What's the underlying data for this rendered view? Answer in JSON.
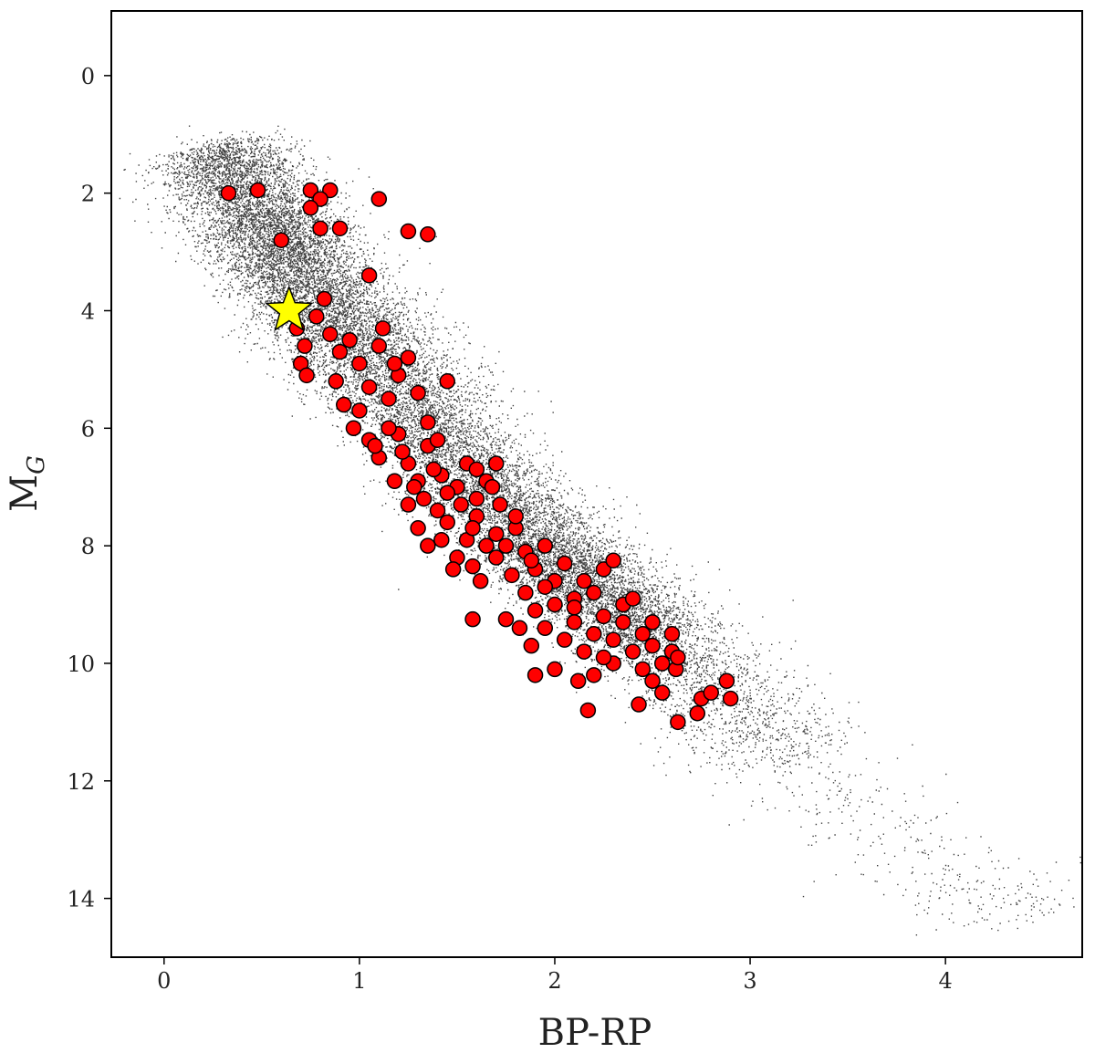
{
  "chart_data": {
    "type": "scatter",
    "xlabel": "BP-RP",
    "ylabel": "M",
    "ylabel_subscript": "G",
    "xlim": [
      -0.27,
      4.7
    ],
    "ylim": [
      15.0,
      -1.1
    ],
    "y_inverted": true,
    "x_ticks": [
      {
        "value": 0,
        "label": "0"
      },
      {
        "value": 1,
        "label": "1"
      },
      {
        "value": 2,
        "label": "2"
      },
      {
        "value": 3,
        "label": "3"
      },
      {
        "value": 4,
        "label": "4"
      }
    ],
    "y_ticks": [
      {
        "value": 0,
        "label": "0"
      },
      {
        "value": 2,
        "label": "2"
      },
      {
        "value": 4,
        "label": "4"
      },
      {
        "value": 6,
        "label": "6"
      },
      {
        "value": 8,
        "label": "8"
      },
      {
        "value": 10,
        "label": "10"
      },
      {
        "value": 12,
        "label": "12"
      },
      {
        "value": 14,
        "label": "14"
      }
    ],
    "grid": false,
    "colors": {
      "background_stars": "#000000",
      "sample": "#ff0000",
      "sample_edge": "#000000",
      "highlight": "#ffff00"
    },
    "background_sequence": {
      "description_points": [
        {
          "x": 0.25,
          "y": 1.2,
          "spread": 0.28
        },
        {
          "x": 0.5,
          "y": 2.4,
          "spread": 0.32
        },
        {
          "x": 0.7,
          "y": 3.4,
          "spread": 0.3
        },
        {
          "x": 1.0,
          "y": 4.6,
          "spread": 0.35
        },
        {
          "x": 1.3,
          "y": 5.7,
          "spread": 0.32
        },
        {
          "x": 1.6,
          "y": 6.9,
          "spread": 0.3
        },
        {
          "x": 1.9,
          "y": 7.9,
          "spread": 0.3
        },
        {
          "x": 2.2,
          "y": 8.7,
          "spread": 0.3
        },
        {
          "x": 2.5,
          "y": 9.6,
          "spread": 0.32
        },
        {
          "x": 2.8,
          "y": 10.4,
          "spread": 0.35
        },
        {
          "x": 3.2,
          "y": 11.6,
          "spread": 0.38
        },
        {
          "x": 3.6,
          "y": 12.7,
          "spread": 0.4
        },
        {
          "x": 4.1,
          "y": 13.8,
          "spread": 0.4
        },
        {
          "x": 4.5,
          "y": 14.3,
          "spread": 0.4
        }
      ]
    },
    "series": [
      {
        "marker": "circle",
        "points": [
          [
            0.33,
            2.0
          ],
          [
            0.48,
            1.95
          ],
          [
            0.75,
            1.95
          ],
          [
            0.85,
            1.95
          ],
          [
            0.8,
            2.1
          ],
          [
            0.75,
            2.25
          ],
          [
            1.1,
            2.1
          ],
          [
            0.6,
            2.8
          ],
          [
            0.8,
            2.6
          ],
          [
            0.9,
            2.6
          ],
          [
            1.25,
            2.65
          ],
          [
            1.35,
            2.7
          ],
          [
            1.05,
            3.4
          ],
          [
            0.68,
            4.3
          ],
          [
            0.72,
            4.6
          ],
          [
            0.7,
            4.9
          ],
          [
            0.73,
            5.1
          ],
          [
            0.78,
            4.1
          ],
          [
            0.82,
            3.8
          ],
          [
            0.85,
            4.4
          ],
          [
            0.9,
            4.7
          ],
          [
            0.88,
            5.2
          ],
          [
            0.95,
            4.5
          ],
          [
            1.0,
            4.9
          ],
          [
            1.05,
            5.3
          ],
          [
            1.1,
            4.6
          ],
          [
            1.15,
            5.5
          ],
          [
            1.2,
            5.1
          ],
          [
            1.25,
            4.8
          ],
          [
            1.3,
            5.4
          ],
          [
            0.92,
            5.6
          ],
          [
            1.0,
            5.7
          ],
          [
            0.97,
            6.0
          ],
          [
            1.05,
            6.2
          ],
          [
            1.1,
            6.5
          ],
          [
            1.2,
            6.1
          ],
          [
            1.25,
            6.6
          ],
          [
            1.3,
            6.9
          ],
          [
            1.35,
            6.3
          ],
          [
            1.45,
            5.2
          ],
          [
            1.42,
            6.8
          ],
          [
            1.5,
            7.0
          ],
          [
            1.55,
            6.6
          ],
          [
            1.6,
            7.2
          ],
          [
            1.65,
            6.9
          ],
          [
            1.7,
            6.6
          ],
          [
            1.72,
            7.3
          ],
          [
            1.4,
            7.4
          ],
          [
            1.45,
            7.6
          ],
          [
            1.3,
            7.7
          ],
          [
            1.25,
            7.3
          ],
          [
            1.18,
            6.9
          ],
          [
            1.08,
            6.3
          ],
          [
            1.6,
            7.5
          ],
          [
            1.7,
            7.8
          ],
          [
            1.75,
            8.0
          ],
          [
            1.8,
            7.7
          ],
          [
            1.85,
            8.1
          ],
          [
            1.9,
            8.4
          ],
          [
            1.95,
            8.0
          ],
          [
            2.0,
            8.6
          ],
          [
            2.05,
            8.3
          ],
          [
            2.1,
            8.9
          ],
          [
            2.15,
            8.6
          ],
          [
            2.2,
            8.8
          ],
          [
            2.25,
            8.4
          ],
          [
            2.3,
            8.25
          ],
          [
            2.35,
            9.0
          ],
          [
            2.4,
            8.9
          ],
          [
            1.5,
            8.2
          ],
          [
            1.48,
            8.4
          ],
          [
            1.58,
            8.35
          ],
          [
            1.65,
            8.0
          ],
          [
            1.78,
            8.5
          ],
          [
            1.85,
            8.8
          ],
          [
            1.9,
            9.1
          ],
          [
            1.95,
            9.4
          ],
          [
            2.0,
            9.0
          ],
          [
            2.05,
            9.6
          ],
          [
            2.1,
            9.3
          ],
          [
            2.15,
            9.8
          ],
          [
            2.2,
            9.5
          ],
          [
            2.25,
            9.2
          ],
          [
            2.3,
            9.6
          ],
          [
            2.35,
            9.3
          ],
          [
            2.4,
            9.8
          ],
          [
            2.45,
            9.5
          ],
          [
            2.5,
            9.7
          ],
          [
            2.55,
            10.0
          ],
          [
            2.6,
            9.8
          ],
          [
            2.62,
            10.1
          ],
          [
            2.45,
            10.1
          ],
          [
            2.3,
            10.0
          ],
          [
            2.2,
            10.2
          ],
          [
            1.58,
            9.25
          ],
          [
            1.75,
            9.25
          ],
          [
            1.82,
            9.4
          ],
          [
            1.88,
            9.7
          ],
          [
            1.9,
            10.2
          ],
          [
            2.0,
            10.1
          ],
          [
            2.12,
            10.3
          ],
          [
            2.17,
            10.8
          ],
          [
            2.43,
            10.7
          ],
          [
            2.5,
            10.3
          ],
          [
            2.55,
            10.5
          ],
          [
            2.63,
            11.0
          ],
          [
            2.73,
            10.85
          ],
          [
            2.75,
            10.6
          ],
          [
            2.8,
            10.5
          ],
          [
            2.88,
            10.3
          ],
          [
            2.9,
            10.6
          ],
          [
            1.35,
            8.0
          ],
          [
            1.42,
            7.9
          ],
          [
            1.55,
            7.9
          ],
          [
            1.62,
            8.6
          ],
          [
            1.7,
            8.2
          ],
          [
            1.88,
            8.25
          ],
          [
            1.95,
            8.7
          ],
          [
            2.1,
            9.05
          ],
          [
            2.25,
            9.9
          ],
          [
            2.5,
            9.3
          ],
          [
            2.6,
            9.5
          ],
          [
            2.63,
            9.9
          ],
          [
            1.12,
            4.3
          ],
          [
            1.18,
            4.9
          ],
          [
            1.35,
            5.9
          ],
          [
            1.4,
            6.2
          ],
          [
            1.15,
            6.0
          ],
          [
            1.22,
            6.4
          ],
          [
            1.28,
            7.0
          ],
          [
            1.33,
            7.2
          ],
          [
            1.38,
            6.7
          ],
          [
            1.45,
            7.1
          ],
          [
            1.52,
            7.3
          ],
          [
            1.58,
            7.7
          ],
          [
            1.6,
            6.7
          ],
          [
            1.68,
            7.0
          ],
          [
            1.8,
            7.5
          ]
        ]
      },
      {
        "marker": "star",
        "points": [
          [
            0.64,
            4.0
          ]
        ]
      }
    ]
  }
}
